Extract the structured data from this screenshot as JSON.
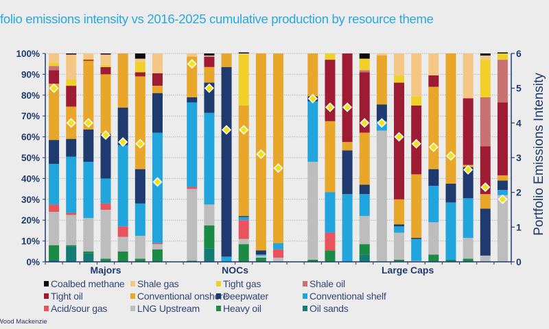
{
  "title": "folio emissions intensity vs 2016-2025 cumulative production by resource theme",
  "footer": "Wood Mackenzie",
  "chart_data": {
    "type": "bar",
    "stacked": true,
    "group_labels": [
      "Majors",
      "NOCs",
      "Large Caps"
    ],
    "bar_groups": [
      "Majors",
      "Majors",
      "Majors",
      "Majors",
      "Majors",
      "Majors",
      "Majors",
      "NOCs",
      "NOCs",
      "NOCs",
      "NOCs",
      "NOCs",
      "NOCs",
      "Large Caps",
      "Large Caps",
      "Large Caps",
      "Large Caps",
      "Large Caps",
      "Large Caps",
      "Large Caps",
      "Large Caps",
      "Large Caps",
      "Large Caps",
      "Large Caps",
      "Large Caps"
    ],
    "left_axis": {
      "ylim": [
        0,
        100
      ],
      "ticks": [
        "0%",
        "10%",
        "20%",
        "30%",
        "40%",
        "50%",
        "60%",
        "70%",
        "80%",
        "90%",
        "100%"
      ]
    },
    "right_axis": {
      "label": "Portfolio Emissions Intensity",
      "ylim": [
        0,
        6
      ],
      "ticks": [
        "0",
        "1",
        "2",
        "3",
        "4",
        "5",
        "6"
      ]
    },
    "grid": true,
    "legend_position": "bottom",
    "series": [
      {
        "name": "Coalbed methane",
        "color": "#0a0a0a",
        "values": [
          0,
          0.5,
          0,
          0.5,
          0,
          2.5,
          0,
          0,
          1,
          0,
          0.5,
          0,
          0,
          0,
          0,
          0,
          2.5,
          0,
          0,
          0,
          0,
          0,
          0,
          1,
          0.5
        ]
      },
      {
        "name": "Shale gas",
        "color": "#f5c785",
        "values": [
          4.5,
          12,
          2.5,
          5,
          0,
          1.5,
          9.5,
          1.5,
          0.5,
          0,
          0.5,
          0,
          0,
          0,
          0,
          0,
          0,
          1,
          10.5,
          20.5,
          10.5,
          0,
          21.5,
          2,
          0
        ]
      },
      {
        "name": "Tight gas",
        "color": "#f0d12a",
        "values": [
          1.5,
          3,
          0.5,
          1,
          0,
          5,
          0,
          0,
          0,
          0,
          24.5,
          0,
          0,
          0,
          3,
          0,
          5.5,
          0,
          3.5,
          4.5,
          0,
          0,
          0,
          18,
          3
        ]
      },
      {
        "name": "Shale oil",
        "color": "#c87274",
        "values": [
          2,
          0,
          0,
          0,
          0,
          0,
          0,
          0,
          0,
          0,
          0,
          0,
          0,
          0,
          0,
          0,
          1,
          0,
          0,
          0,
          0,
          0,
          0,
          23.5,
          20.5
        ]
      },
      {
        "name": "Tight oil",
        "color": "#9e1b34",
        "values": [
          6.5,
          10,
          0.5,
          3.5,
          0,
          2,
          6,
          0,
          5,
          0,
          0,
          0,
          0,
          0,
          29.5,
          42.5,
          29,
          0,
          56,
          33,
          5.5,
          0,
          32,
          23,
          35
        ]
      },
      {
        "name": "Conventional onshore",
        "color": "#e8a62a",
        "values": [
          27,
          15.5,
          33,
          28.5,
          26,
          44.5,
          3.5,
          19.5,
          7.5,
          6.5,
          53,
          94.5,
          91,
          20.5,
          34,
          4,
          25,
          23.5,
          12,
          30.5,
          39.5,
          62.5,
          1,
          7,
          2.5
        ]
      },
      {
        "name": "Deepwater",
        "color": "#1e3a6e",
        "values": [
          11.5,
          8.5,
          15.5,
          21.5,
          18,
          16.5,
          19,
          2.5,
          14.5,
          91,
          0.5,
          2,
          0,
          2.5,
          0,
          21,
          4.5,
          8,
          1,
          0.5,
          8,
          9,
          15,
          22.5,
          4.5
        ]
      },
      {
        "name": "Conventional shelf",
        "color": "#22a4dc",
        "values": [
          19.5,
          27,
          27,
          12,
          39,
          15.5,
          53,
          40.5,
          44,
          2.5,
          1.5,
          0.5,
          3,
          29,
          19.5,
          32.5,
          10.5,
          4.5,
          3,
          10.5,
          17.5,
          27.5,
          19,
          0,
          2.5
        ]
      },
      {
        "name": "Acid/sour gas",
        "color": "#e9545c",
        "values": [
          3.5,
          1,
          0,
          3,
          5,
          0,
          0.5,
          1,
          0,
          0,
          9,
          0,
          4,
          0,
          8.5,
          0,
          0,
          0,
          0,
          0,
          0,
          0,
          0,
          0,
          0
        ]
      },
      {
        "name": "LNG Upstream",
        "color": "#bdbdbd",
        "values": [
          16,
          14.5,
          16,
          23.5,
          7,
          11,
          2.5,
          34.5,
          10,
          0,
          2.5,
          1,
          2,
          47,
          0,
          0,
          13.5,
          63,
          13,
          0.5,
          15.5,
          0,
          10,
          3,
          32
        ]
      },
      {
        "name": "Heavy oil",
        "color": "#1a8a44",
        "values": [
          7,
          0.5,
          1,
          1.5,
          5,
          1.5,
          6,
          0.5,
          11,
          0,
          8.5,
          2,
          0,
          1,
          5.5,
          0,
          5,
          0,
          1,
          0,
          3.5,
          1,
          1.5,
          0,
          0
        ]
      },
      {
        "name": "Oil sands",
        "color": "#137b74",
        "values": [
          1,
          7.5,
          4,
          0,
          0,
          0,
          0,
          0,
          6.5,
          0,
          0,
          0,
          0,
          0,
          0,
          0,
          3.5,
          0,
          0,
          0,
          0,
          0,
          0,
          0,
          0
        ]
      }
    ],
    "intensity": {
      "axis": "right",
      "marker": "diamond",
      "color": "#f2e21a",
      "values": [
        5.0,
        4.0,
        4.0,
        3.65,
        3.45,
        3.4,
        2.3,
        5.7,
        5.0,
        3.8,
        3.8,
        3.1,
        2.7,
        4.7,
        4.45,
        4.45,
        4.0,
        4.0,
        3.6,
        3.4,
        3.3,
        3.05,
        2.65,
        2.15,
        1.8
      ]
    }
  }
}
